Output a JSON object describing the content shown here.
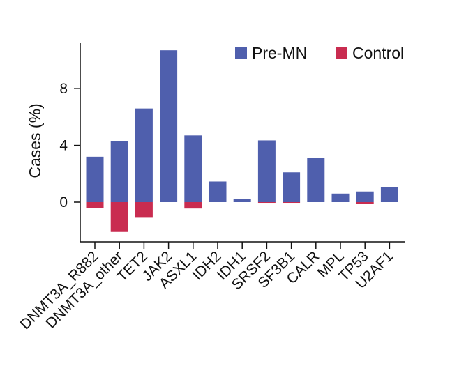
{
  "chart_data": {
    "type": "bar",
    "title": "",
    "xlabel": "",
    "ylabel": "Cases (%)",
    "ylim": [
      -2.8,
      11.2
    ],
    "yticks": [
      0,
      4,
      8
    ],
    "categories": [
      "DNMT3A_R882",
      "DNMT3A_other",
      "TET2",
      "JAK2",
      "ASXL1",
      "IDH2",
      "IDH1",
      "SRSF2",
      "SF3B1",
      "CALR",
      "MPL",
      "TP53",
      "U2AF1"
    ],
    "series": [
      {
        "name": "Pre-MN",
        "color": "#4f5fad",
        "values": [
          3.2,
          4.3,
          6.6,
          10.7,
          4.7,
          1.45,
          0.2,
          4.35,
          2.1,
          3.1,
          0.6,
          0.75,
          1.05
        ]
      },
      {
        "name": "Control",
        "color": "#c92c50",
        "values": [
          -0.4,
          -2.1,
          -1.1,
          0,
          -0.45,
          0,
          0,
          -0.05,
          -0.05,
          0,
          0,
          -0.1,
          0
        ]
      }
    ],
    "legend": "top-right"
  }
}
